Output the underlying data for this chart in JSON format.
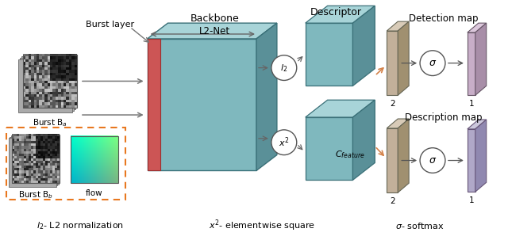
{
  "bg_color": "#ffffff",
  "teal_face": "#7fb8be",
  "teal_top": "#a8d4d8",
  "teal_side": "#5a9098",
  "red_strip": "#cc5555",
  "tan_face": "#c2b09a",
  "tan_top": "#d8cbb8",
  "tan_side": "#a09070",
  "pink_face": "#c8aec8",
  "pink_top": "#dcc8dc",
  "pink_side": "#a88ea8",
  "purple_face": "#b0a8c8",
  "purple_top": "#ccc8dc",
  "purple_side": "#9088b0",
  "edge_dark": "#444444",
  "arrow_gray": "#777777",
  "arrow_orange": "#d4824a",
  "bottom_text_l2": "$l_2$- L2 normalization",
  "bottom_text_x2": "$x^2$- elementwise square",
  "bottom_text_sigma": "$\\sigma$- softmax",
  "label_burst_layer": "Burst layer",
  "label_backbone": "Backbone",
  "label_l2net": "L2-Net",
  "label_descriptor": "Descriptor",
  "label_cfeature": "$C_{feature}$",
  "label_detection": "Detection map",
  "label_description": "Description map",
  "label_ba": "Burst B$_a$",
  "label_bb": "Burst B$_b$",
  "label_flow": "flow",
  "label_2a": "2",
  "label_1a": "1",
  "label_2b": "2",
  "label_1b": "1"
}
